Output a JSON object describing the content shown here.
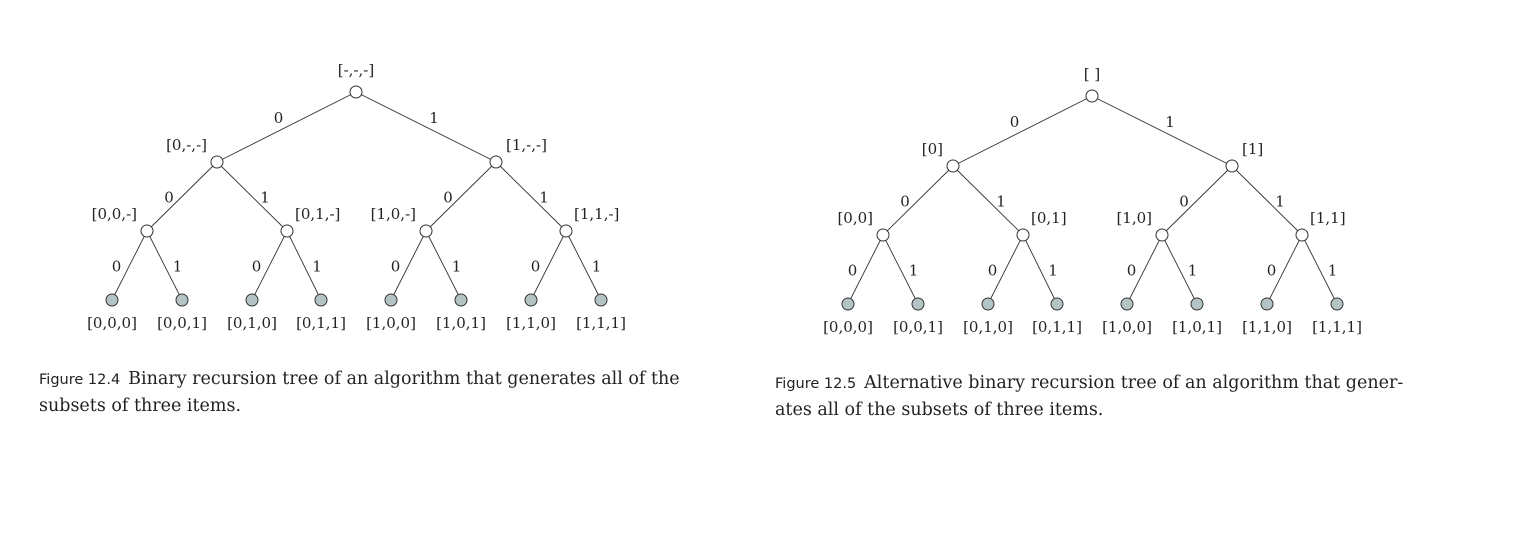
{
  "figures": [
    {
      "label": "Figure 12.4",
      "caption": "Binary recursion tree of an algorithm that generates all of the subsets of three items.",
      "node_labels": {
        "root": "[-,-,-]",
        "level1": [
          "[0,-,-]",
          "[1,-,-]"
        ],
        "level2": [
          "[0,0,-]",
          "[0,1,-]",
          "[1,0,-]",
          "[1,1,-]"
        ],
        "leaves": [
          "[0,0,0]",
          "[0,0,1]",
          "[0,1,0]",
          "[0,1,1]",
          "[1,0,0]",
          "[1,0,1]",
          "[1,1,0]",
          "[1,1,1]"
        ]
      },
      "edge_labels": [
        "0",
        "1"
      ]
    },
    {
      "label": "Figure 12.5",
      "caption": "Alternative binary recursion tree of an algorithm that generates all of the subsets of three items.",
      "caption_lines": [
        "Alternative binary recursion tree of an algorithm that gener-",
        "ates all of the subsets of three items."
      ],
      "node_labels": {
        "root": "[ ]",
        "level1": [
          "[0]",
          "[1]"
        ],
        "level2": [
          "[0,0]",
          "[0,1]",
          "[1,0]",
          "[1,1]"
        ],
        "leaves": [
          "[0,0,0]",
          "[0,0,1]",
          "[0,1,0]",
          "[0,1,1]",
          "[1,0,0]",
          "[1,0,1]",
          "[1,1,0]",
          "[1,1,1]"
        ]
      },
      "edge_labels": [
        "0",
        "1"
      ]
    }
  ],
  "colors": {
    "internal_node_fill": "#ffffff",
    "leaf_node_fill": "#b4c4c4",
    "stroke": "#333333",
    "text": "#222222"
  }
}
